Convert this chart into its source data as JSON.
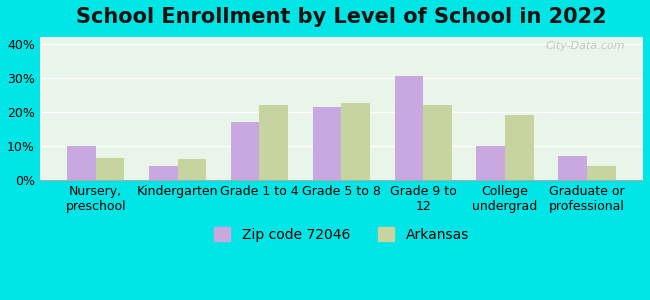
{
  "title": "School Enrollment by Level of School in 2022",
  "categories": [
    "Nursery,\npreschool",
    "Kindergarten",
    "Grade 1 to 4",
    "Grade 5 to 8",
    "Grade 9 to\n12",
    "College\nundergrad",
    "Graduate or\nprofessional"
  ],
  "zip_values": [
    10,
    4,
    17,
    21.5,
    30.5,
    10,
    7
  ],
  "arkansas_values": [
    6.5,
    6,
    22,
    22.5,
    22,
    19,
    4
  ],
  "zip_color": "#c9a8e0",
  "arkansas_color": "#c8d4a0",
  "legend_zip_label": "Zip code 72046",
  "legend_ark_label": "Arkansas",
  "ylim": [
    0,
    42
  ],
  "yticks": [
    0,
    10,
    20,
    30,
    40
  ],
  "ytick_labels": [
    "0%",
    "10%",
    "20%",
    "30%",
    "40%"
  ],
  "background_outer": "#00e5e5",
  "background_inner_top": "#e8f5e8",
  "background_inner_bottom": "#f0f8e8",
  "grid_color": "#ffffff",
  "title_fontsize": 15,
  "axis_fontsize": 9,
  "legend_fontsize": 10,
  "watermark_text": "City-Data.com"
}
